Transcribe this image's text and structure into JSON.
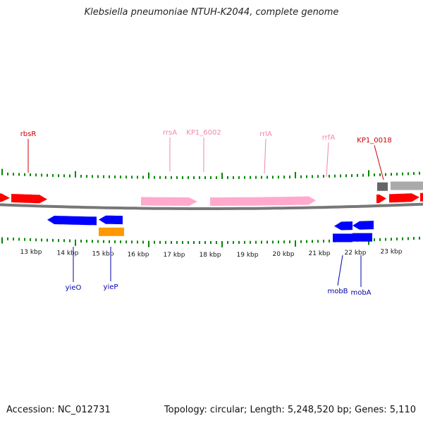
{
  "title": "Klebsiella pneumoniae NTUH-K2044, complete genome",
  "footer": {
    "accession": "Accession: NC_012731",
    "summary": "Topology: circular; Length: 5,248,520 bp; Genes: 5,110"
  },
  "colors": {
    "forward_cds": "#ff0000",
    "reverse_cds": "#0000ff",
    "rna": "#ffaacc",
    "other": "#ff9900",
    "pseudo": "#666666",
    "pseudo_light": "#aaaaaa",
    "backbone": "#777777",
    "ticks": "#008800",
    "label_forward": "#cc0000",
    "label_rna": "#ee88aa",
    "label_reverse": "#0000aa"
  },
  "tick_labels": [
    "13 kbp",
    "14 kbp",
    "15 kbp",
    "16 kbp",
    "17 kbp",
    "18 kbp",
    "19 kbp",
    "20 kbp",
    "21 kbp",
    "22 kbp",
    "23 kbp"
  ],
  "genes_top": [
    {
      "name": "rbsR",
      "type": "forward"
    },
    {
      "name": "rrsA",
      "type": "rna"
    },
    {
      "name": "KP1_6002",
      "type": "rna"
    },
    {
      "name": "rrlA",
      "type": "rna"
    },
    {
      "name": "rrfA",
      "type": "rna"
    },
    {
      "name": "KP1_0018",
      "type": "forward"
    }
  ],
  "genes_bottom": [
    {
      "name": "yieO",
      "type": "reverse"
    },
    {
      "name": "yieP",
      "type": "reverse"
    },
    {
      "name": "mobB",
      "type": "reverse"
    },
    {
      "name": "mobA",
      "type": "reverse"
    }
  ]
}
